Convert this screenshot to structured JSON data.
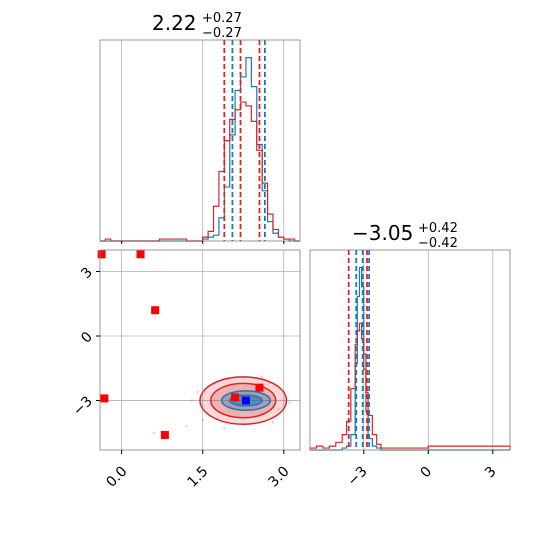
{
  "chart_data": [
    {
      "type": "histogram",
      "panel": "top-left",
      "title": {
        "value": "2.22",
        "plus": "+0.27",
        "minus": "−0.27"
      },
      "xlim": [
        -0.4,
        3.3
      ],
      "grid": true,
      "series": [
        {
          "color": "#1f77b4",
          "bin_edges": [
            -0.4,
            -0.3,
            -0.2,
            -0.1,
            0.0,
            0.1,
            0.2,
            0.3,
            0.4,
            0.5,
            0.6,
            0.7,
            0.8,
            0.9,
            1.0,
            1.1,
            1.2,
            1.3,
            1.4,
            1.5,
            1.6,
            1.7,
            1.8,
            1.9,
            2.0,
            2.1,
            2.2,
            2.3,
            2.4,
            2.5,
            2.6,
            2.7,
            2.8,
            2.9,
            3.0,
            3.1,
            3.2,
            3.3
          ],
          "counts": [
            0,
            0,
            0,
            0,
            0,
            0,
            0,
            0,
            0,
            0,
            0,
            0,
            0,
            0,
            0,
            0,
            0,
            0,
            0,
            0.01,
            0.02,
            0.03,
            0.12,
            0.28,
            0.55,
            0.78,
            0.85,
            0.95,
            0.8,
            0.5,
            0.26,
            0.1,
            0.04,
            0.02,
            0.01,
            0,
            0
          ]
        },
        {
          "color": "#d62728",
          "bin_edges": [
            -0.4,
            -0.3,
            -0.2,
            -0.1,
            0.0,
            0.1,
            0.2,
            0.3,
            0.4,
            0.5,
            0.6,
            0.7,
            0.8,
            0.9,
            1.0,
            1.1,
            1.2,
            1.3,
            1.4,
            1.5,
            1.6,
            1.7,
            1.8,
            1.9,
            2.0,
            2.1,
            2.2,
            2.3,
            2.4,
            2.5,
            2.6,
            2.7,
            2.8,
            2.9,
            3.0,
            3.1,
            3.2,
            3.3
          ],
          "counts": [
            0,
            0.01,
            0,
            0,
            0,
            0,
            0,
            0,
            0,
            0,
            0,
            0.01,
            0.01,
            0.01,
            0.01,
            0.01,
            0,
            0,
            0,
            0.02,
            0.05,
            0.18,
            0.36,
            0.52,
            0.63,
            0.68,
            0.72,
            0.7,
            0.62,
            0.47,
            0.3,
            0.14,
            0.06,
            0.02,
            0.01,
            0.01,
            0
          ]
        }
      ],
      "quantile_lines": [
        {
          "x": 1.9,
          "color": "#d62728"
        },
        {
          "x": 2.05,
          "color": "#1f77b4"
        },
        {
          "x": 2.2,
          "color": "#d62728"
        },
        {
          "x": 2.55,
          "color": "#d62728"
        },
        {
          "x": 2.65,
          "color": "#1f77b4"
        }
      ]
    },
    {
      "type": "scatter",
      "panel": "bottom-left",
      "xlim": [
        -0.4,
        3.3
      ],
      "ylim": [
        -5.3,
        4.0
      ],
      "xticks": [
        0.0,
        1.5,
        3.0
      ],
      "xtick_labels": [
        "0.0",
        "1.5",
        "3.0"
      ],
      "yticks": [
        3,
        0,
        -3
      ],
      "ytick_labels": [
        "3",
        "0",
        "−3"
      ],
      "grid": true,
      "red_markers": [
        {
          "x": -0.37,
          "y": 3.8
        },
        {
          "x": 0.35,
          "y": 3.8
        },
        {
          "x": 0.62,
          "y": 1.2
        },
        {
          "x": -0.32,
          "y": -2.9
        },
        {
          "x": 0.8,
          "y": -4.6
        },
        {
          "x": 2.55,
          "y": -2.4
        },
        {
          "x": 2.1,
          "y": -2.85
        }
      ],
      "blue_markers": [
        {
          "x": 2.3,
          "y": -3.0
        }
      ],
      "contours": [
        {
          "color": "#d62728",
          "fill": "rgba(214,39,40,0.18)",
          "cx": 2.25,
          "cy": -3.0,
          "rx": 0.8,
          "ry": 1.1
        },
        {
          "color": "#d62728",
          "fill": "rgba(214,39,40,0.22)",
          "cx": 2.25,
          "cy": -3.0,
          "rx": 0.6,
          "ry": 0.8
        },
        {
          "color": "#1f77b4",
          "fill": "rgba(31,119,180,0.35)",
          "cx": 2.3,
          "cy": -3.0,
          "rx": 0.45,
          "ry": 0.45
        },
        {
          "color": "#1f77b4",
          "fill": "rgba(31,119,180,0.55)",
          "cx": 2.3,
          "cy": -3.0,
          "rx": 0.3,
          "ry": 0.25
        }
      ]
    },
    {
      "type": "histogram",
      "panel": "bottom-right",
      "title": {
        "value": "−3.05",
        "plus": "+0.42",
        "minus": "−0.42"
      },
      "xlim": [
        -5.5,
        3.8
      ],
      "xticks": [
        -3,
        0,
        3
      ],
      "xtick_labels": [
        "−3",
        "0",
        "3"
      ],
      "grid": true,
      "series": [
        {
          "color": "#1f77b4",
          "bin_edges": [
            -5.5,
            -5.2,
            -4.9,
            -4.6,
            -4.3,
            -4.0,
            -3.8,
            -3.6,
            -3.4,
            -3.3,
            -3.2,
            -3.1,
            -3.0,
            -2.9,
            -2.8,
            -2.6,
            -2.4,
            -2.2,
            -2.0,
            -1.5,
            0,
            3.8
          ],
          "counts": [
            0,
            0,
            0,
            0,
            0,
            0.01,
            0.02,
            0.08,
            0.45,
            0.8,
            0.95,
            0.85,
            0.5,
            0.2,
            0.06,
            0.02,
            0.01,
            0,
            0,
            0,
            0
          ]
        },
        {
          "color": "#d62728",
          "bin_edges": [
            -5.5,
            -5.2,
            -4.9,
            -4.6,
            -4.3,
            -4.0,
            -3.8,
            -3.6,
            -3.4,
            -3.3,
            -3.2,
            -3.1,
            -3.0,
            -2.9,
            -2.8,
            -2.6,
            -2.4,
            -2.2,
            -2.0,
            -1.5,
            0,
            3.8
          ],
          "counts": [
            0.01,
            0.02,
            0.01,
            0.02,
            0.04,
            0.08,
            0.15,
            0.32,
            0.55,
            0.62,
            0.66,
            0.58,
            0.42,
            0.3,
            0.18,
            0.08,
            0.03,
            0.01,
            0.01,
            0.01,
            0.02
          ]
        }
      ],
      "quantile_lines": [
        {
          "x": -3.7,
          "color": "#d62728"
        },
        {
          "x": -3.35,
          "color": "#1f77b4"
        },
        {
          "x": -3.05,
          "color": "#1f77b4"
        },
        {
          "x": -2.85,
          "color": "#d62728"
        },
        {
          "x": -2.75,
          "color": "#1f77b4"
        }
      ]
    }
  ]
}
